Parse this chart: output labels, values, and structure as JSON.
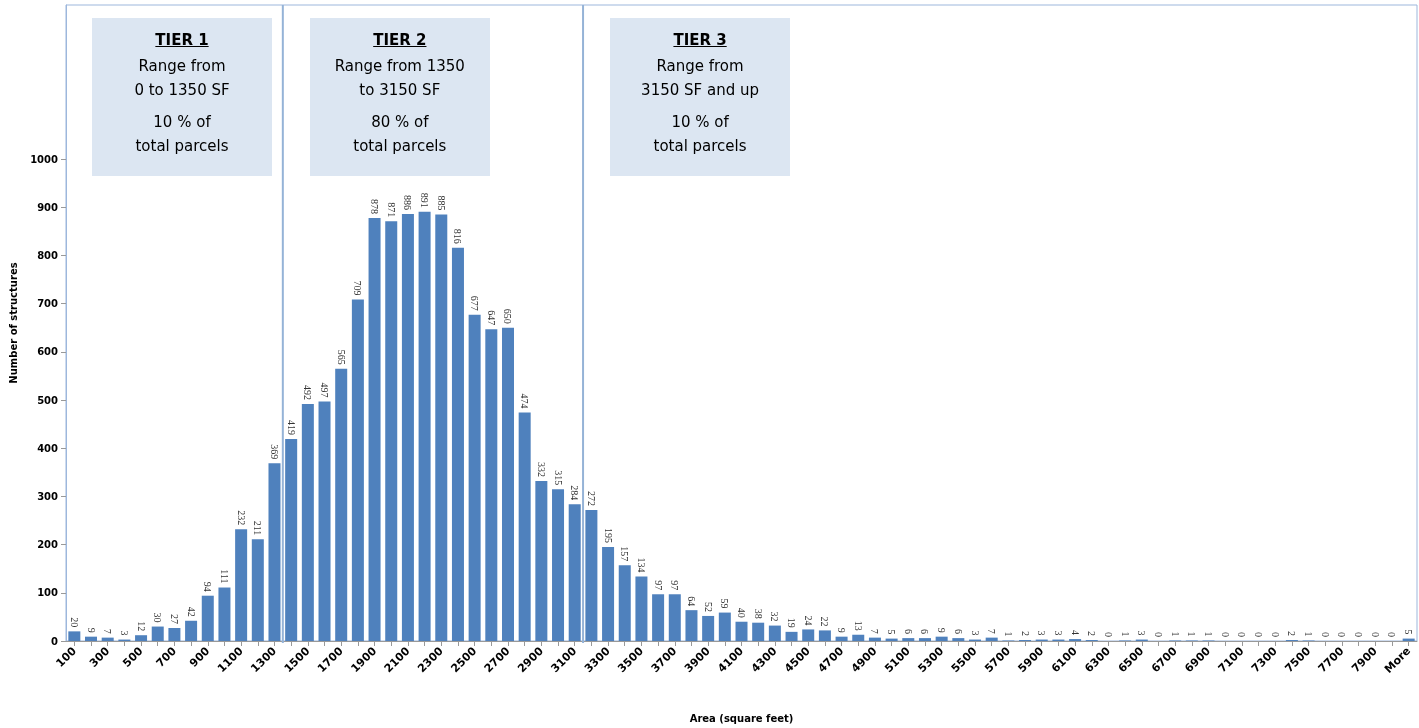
{
  "chart_data": {
    "type": "bar",
    "xlabel": "Area (square feet)",
    "ylabel": "Number of structures",
    "categories": [
      "100",
      null,
      "300",
      null,
      "500",
      null,
      "700",
      null,
      "900",
      null,
      "1100",
      null,
      "1300",
      null,
      "1500",
      null,
      "1700",
      null,
      "1900",
      null,
      "2100",
      null,
      "2300",
      null,
      "2500",
      null,
      "2700",
      null,
      "2900",
      null,
      "3100",
      null,
      "3300",
      null,
      "3500",
      null,
      "3700",
      null,
      "3900",
      null,
      "4100",
      null,
      "4300",
      null,
      "4500",
      null,
      "4700",
      null,
      "4900",
      null,
      "5100",
      null,
      "5300",
      null,
      "5500",
      null,
      "5700",
      null,
      "5900",
      null,
      "6100",
      null,
      "6300",
      null,
      "6500",
      null,
      "6700",
      null,
      "6900",
      null,
      "7100",
      null,
      "7300",
      null,
      "7500",
      null,
      "7700",
      null,
      "7900",
      null,
      "More"
    ],
    "values": [
      20,
      9,
      7,
      3,
      12,
      30,
      27,
      42,
      94,
      111,
      232,
      211,
      369,
      419,
      492,
      497,
      565,
      709,
      878,
      871,
      886,
      891,
      885,
      816,
      677,
      647,
      650,
      474,
      332,
      315,
      284,
      272,
      195,
      157,
      134,
      97,
      97,
      64,
      52,
      59,
      40,
      38,
      32,
      19,
      24,
      22,
      9,
      13,
      7,
      5,
      6,
      6,
      9,
      6,
      3,
      7,
      1,
      2,
      3,
      3,
      4,
      2,
      0,
      1,
      3,
      0,
      1,
      1,
      1,
      0,
      0,
      0,
      0,
      2,
      1,
      0,
      0,
      0,
      0,
      0,
      5
    ],
    "color": "#4f81bd",
    "data_labels": true,
    "ylim": [
      0,
      1320
    ],
    "yticks": [
      0,
      100,
      200,
      300,
      400,
      500,
      600,
      700,
      800,
      900,
      1000
    ],
    "grid": false,
    "annotations": [
      "TIER 1\nRange from\n0 to 1350 SF\n10 %  of\ntotal parcels",
      "TIER 2\nRange from 1350\nto 3150 SF\n80 %  of\ntotal parcels",
      "TIER 3\nRange from\n3150 SF and up\n10 %  of\ntotal parcels"
    ]
  }
}
